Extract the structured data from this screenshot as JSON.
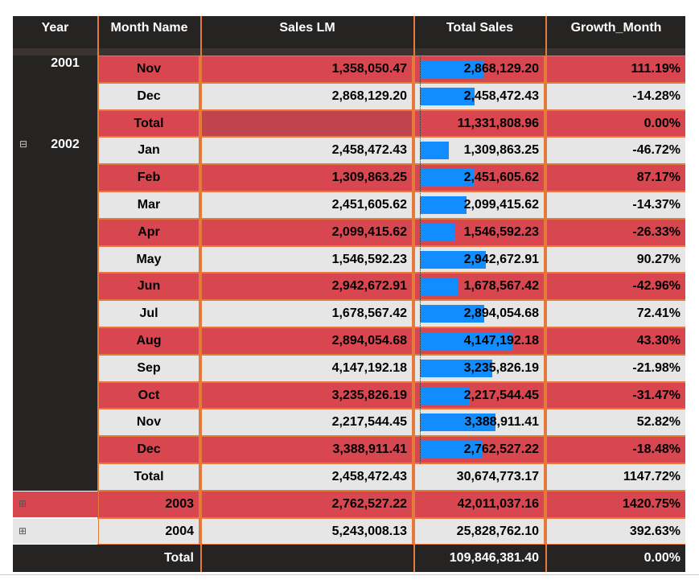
{
  "table": {
    "columns": [
      "Year",
      "Month Name",
      "Sales LM",
      "Total Sales",
      "Growth_Month"
    ],
    "groups": [
      {
        "year": "2001",
        "months": [
          {
            "month": "Nov",
            "sales_lm": "1,358,050.47",
            "total_sales": "2,868,129.20",
            "growth": "111.19%"
          },
          {
            "month": "Dec",
            "sales_lm": "2,868,129.20",
            "total_sales": "2,458,472.43",
            "growth": "-14.28%"
          }
        ],
        "total": {
          "label": "Total",
          "sales_lm": null,
          "total_sales": "11,331,808.96",
          "growth": "0.00%"
        }
      },
      {
        "year": "2002",
        "months": [
          {
            "month": "Jan",
            "sales_lm": "2,458,472.43",
            "total_sales": "1,309,863.25",
            "growth": "-46.72%"
          },
          {
            "month": "Feb",
            "sales_lm": "1,309,863.25",
            "total_sales": "2,451,605.62",
            "growth": "87.17%"
          },
          {
            "month": "Mar",
            "sales_lm": "2,451,605.62",
            "total_sales": "2,099,415.62",
            "growth": "-14.37%"
          },
          {
            "month": "Apr",
            "sales_lm": "2,099,415.62",
            "total_sales": "1,546,592.23",
            "growth": "-26.33%"
          },
          {
            "month": "May",
            "sales_lm": "1,546,592.23",
            "total_sales": "2,942,672.91",
            "growth": "90.27%"
          },
          {
            "month": "Jun",
            "sales_lm": "2,942,672.91",
            "total_sales": "1,678,567.42",
            "growth": "-42.96%"
          },
          {
            "month": "Jul",
            "sales_lm": "1,678,567.42",
            "total_sales": "2,894,054.68",
            "growth": "72.41%"
          },
          {
            "month": "Aug",
            "sales_lm": "2,894,054.68",
            "total_sales": "4,147,192.18",
            "growth": "43.30%"
          },
          {
            "month": "Sep",
            "sales_lm": "4,147,192.18",
            "total_sales": "3,235,826.19",
            "growth": "-21.98%"
          },
          {
            "month": "Oct",
            "sales_lm": "3,235,826.19",
            "total_sales": "2,217,544.45",
            "growth": "-31.47%"
          },
          {
            "month": "Nov",
            "sales_lm": "2,217,544.45",
            "total_sales": "3,388,911.41",
            "growth": "52.82%"
          },
          {
            "month": "Dec",
            "sales_lm": "3,388,911.41",
            "total_sales": "2,762,527.22",
            "growth": "-18.48%"
          }
        ],
        "total": {
          "label": "Total",
          "sales_lm": "2,458,472.43",
          "total_sales": "30,674,773.17",
          "growth": "1147.72%"
        }
      },
      {
        "year": "2003",
        "sales_lm": "2,762,527.22",
        "total_sales": "42,011,037.16",
        "growth": "1420.75%"
      },
      {
        "year": "2004",
        "sales_lm": "5,243,008.13",
        "total_sales": "25,828,762.10",
        "growth": "392.63%"
      }
    ],
    "grand_total": {
      "label": "Total",
      "sales_lm": null,
      "total_sales": "109,846,381.40",
      "growth": "0.00%"
    }
  }
}
